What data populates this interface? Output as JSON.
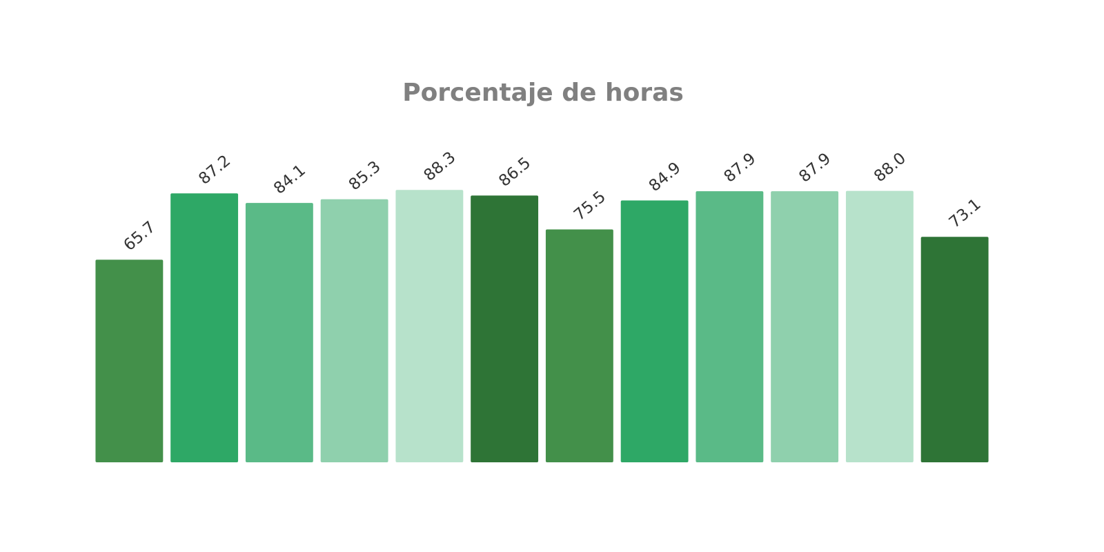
{
  "chart_data": {
    "type": "bar",
    "title": "Porcentaje de horas",
    "categories": [
      null,
      null,
      null,
      null,
      null,
      null,
      null,
      null,
      null,
      null,
      null,
      null
    ],
    "values": [
      65.7,
      87.2,
      84.1,
      85.3,
      88.3,
      86.5,
      75.5,
      84.9,
      87.9,
      87.9,
      88.0,
      73.1
    ],
    "value_labels": [
      "65.7",
      "87.2",
      "84.1",
      "85.3",
      "88.3",
      "86.5",
      "75.5",
      "84.9",
      "87.9",
      "87.9",
      "88.0",
      "73.1"
    ],
    "colors": [
      "#43904a",
      "#2ea866",
      "#5aba87",
      "#8fd0ad",
      "#b7e2cb",
      "#2e7436",
      "#43904a",
      "#2ea866",
      "#5aba87",
      "#8fd0ad",
      "#b7e2cb",
      "#2e7436"
    ],
    "ylim": [
      0,
      100
    ]
  }
}
